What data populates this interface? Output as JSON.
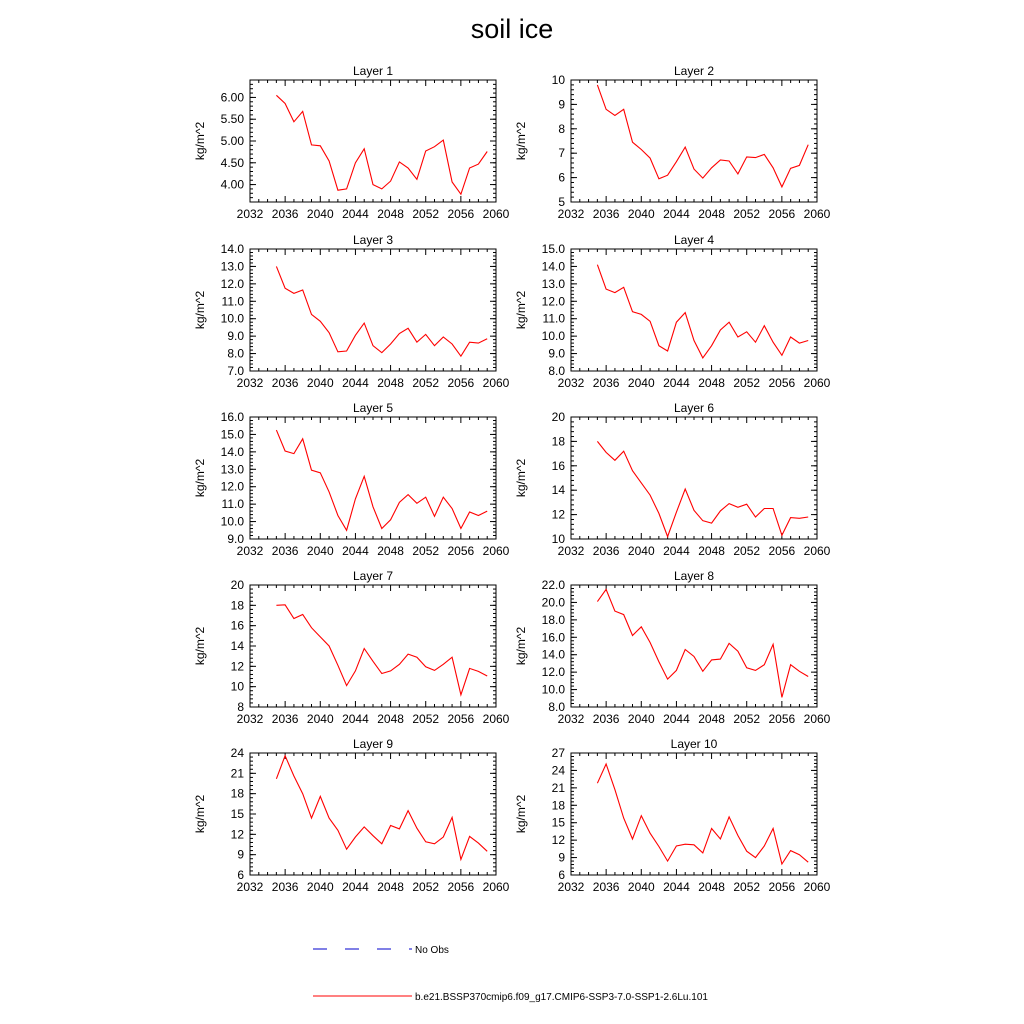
{
  "title": "soil ice",
  "colors": {
    "model": "#ff0000",
    "obs": "#0000cc",
    "axis": "#000000"
  },
  "legend": [
    {
      "label": "No Obs",
      "style": "dashed",
      "color": "#0000cc"
    },
    {
      "label": "b.e21.BSSP370cmip6.f09_g17.CMIP6-SSP3-7.0-SSP1-2.6Lu.101",
      "style": "solid",
      "color": "#ff0000"
    }
  ],
  "chart_data": [
    {
      "type": "line",
      "title": "Layer 1",
      "ylabel": "kg/m^2",
      "xlim": [
        2032,
        2060
      ],
      "xticks": [
        2032,
        2036,
        2040,
        2044,
        2048,
        2052,
        2056,
        2060
      ],
      "xtick_labels": [
        "2032",
        "2036",
        "2040",
        "2044",
        "2048",
        "2052",
        "2056",
        "2060"
      ],
      "ylim": [
        3.6,
        6.4
      ],
      "yticks": [
        4.0,
        4.5,
        5.0,
        5.5,
        6.0
      ],
      "ytick_labels": [
        "4.00",
        "4.50",
        "5.00",
        "5.50",
        "6.00"
      ],
      "series": [
        {
          "x": [
            2035,
            2036,
            2037,
            2038,
            2039,
            2040,
            2041,
            2042,
            2043,
            2044,
            2045,
            2046,
            2047,
            2048,
            2049,
            2050,
            2051,
            2052,
            2053,
            2054,
            2055,
            2056,
            2057,
            2058,
            2059
          ],
          "values": [
            6.05,
            5.86,
            5.44,
            5.68,
            4.91,
            4.89,
            4.54,
            3.87,
            3.9,
            4.5,
            4.82,
            4.0,
            3.9,
            4.08,
            4.52,
            4.38,
            4.12,
            4.77,
            4.87,
            5.02,
            4.06,
            3.78,
            4.38,
            4.47,
            4.76
          ]
        }
      ]
    },
    {
      "type": "line",
      "title": "Layer 2",
      "ylabel": "kg/m^2",
      "xlim": [
        2032,
        2060
      ],
      "xticks": [
        2032,
        2036,
        2040,
        2044,
        2048,
        2052,
        2056,
        2060
      ],
      "xtick_labels": [
        "2032",
        "2036",
        "2040",
        "2044",
        "2048",
        "2052",
        "2056",
        "2060"
      ],
      "ylim": [
        5,
        10
      ],
      "yticks": [
        5,
        6,
        7,
        8,
        9,
        10
      ],
      "ytick_labels": [
        "5",
        "6",
        "7",
        "8",
        "9",
        "10"
      ],
      "series": [
        {
          "x": [
            2035,
            2036,
            2037,
            2038,
            2039,
            2040,
            2041,
            2042,
            2043,
            2044,
            2045,
            2046,
            2047,
            2048,
            2049,
            2050,
            2051,
            2052,
            2053,
            2054,
            2055,
            2056,
            2057,
            2058,
            2059
          ],
          "values": [
            9.8,
            8.8,
            8.55,
            8.8,
            7.45,
            7.15,
            6.8,
            5.95,
            6.1,
            6.65,
            7.25,
            6.35,
            5.98,
            6.4,
            6.72,
            6.68,
            6.15,
            6.85,
            6.82,
            6.95,
            6.4,
            5.62,
            6.38,
            6.5,
            7.35
          ]
        }
      ]
    },
    {
      "type": "line",
      "title": "Layer 3",
      "ylabel": "kg/m^2",
      "xlim": [
        2032,
        2060
      ],
      "xticks": [
        2032,
        2036,
        2040,
        2044,
        2048,
        2052,
        2056,
        2060
      ],
      "xtick_labels": [
        "2032",
        "2036",
        "2040",
        "2044",
        "2048",
        "2052",
        "2056",
        "2060"
      ],
      "ylim": [
        7,
        14
      ],
      "yticks": [
        7,
        8,
        9,
        10,
        11,
        12,
        13,
        14
      ],
      "ytick_labels": [
        "7.0",
        "8.0",
        "9.0",
        "10.0",
        "11.0",
        "12.0",
        "13.0",
        "14.0"
      ],
      "series": [
        {
          "x": [
            2035,
            2036,
            2037,
            2038,
            2039,
            2040,
            2041,
            2042,
            2043,
            2044,
            2045,
            2046,
            2047,
            2048,
            2049,
            2050,
            2051,
            2052,
            2053,
            2054,
            2055,
            2056,
            2057,
            2058,
            2059
          ],
          "values": [
            13.0,
            11.75,
            11.45,
            11.65,
            10.25,
            9.85,
            9.2,
            8.1,
            8.15,
            9.05,
            9.75,
            8.45,
            8.05,
            8.55,
            9.15,
            9.45,
            8.65,
            9.1,
            8.45,
            8.95,
            8.55,
            7.85,
            8.65,
            8.6,
            8.85
          ]
        }
      ]
    },
    {
      "type": "line",
      "title": "Layer 4",
      "ylabel": "kg/m^2",
      "xlim": [
        2032,
        2060
      ],
      "xticks": [
        2032,
        2036,
        2040,
        2044,
        2048,
        2052,
        2056,
        2060
      ],
      "xtick_labels": [
        "2032",
        "2036",
        "2040",
        "2044",
        "2048",
        "2052",
        "2056",
        "2060"
      ],
      "ylim": [
        8,
        15
      ],
      "yticks": [
        8,
        9,
        10,
        11,
        12,
        13,
        14,
        15
      ],
      "ytick_labels": [
        "8.0",
        "9.0",
        "10.0",
        "11.0",
        "12.0",
        "13.0",
        "14.0",
        "15.0"
      ],
      "series": [
        {
          "x": [
            2035,
            2036,
            2037,
            2038,
            2039,
            2040,
            2041,
            2042,
            2043,
            2044,
            2045,
            2046,
            2047,
            2048,
            2049,
            2050,
            2051,
            2052,
            2053,
            2054,
            2055,
            2056,
            2057,
            2058,
            2059
          ],
          "values": [
            14.1,
            12.7,
            12.5,
            12.8,
            11.4,
            11.25,
            10.85,
            9.45,
            9.15,
            10.8,
            11.35,
            9.75,
            8.75,
            9.45,
            10.35,
            10.8,
            9.95,
            10.25,
            9.65,
            10.6,
            9.65,
            8.9,
            9.95,
            9.6,
            9.75
          ]
        }
      ]
    },
    {
      "type": "line",
      "title": "Layer 5",
      "ylabel": "kg/m^2",
      "xlim": [
        2032,
        2060
      ],
      "xticks": [
        2032,
        2036,
        2040,
        2044,
        2048,
        2052,
        2056,
        2060
      ],
      "xtick_labels": [
        "2032",
        "2036",
        "2040",
        "2044",
        "2048",
        "2052",
        "2056",
        "2060"
      ],
      "ylim": [
        9,
        16
      ],
      "yticks": [
        9,
        10,
        11,
        12,
        13,
        14,
        15,
        16
      ],
      "ytick_labels": [
        "9.0",
        "10.0",
        "11.0",
        "12.0",
        "13.0",
        "14.0",
        "15.0",
        "16.0"
      ],
      "series": [
        {
          "x": [
            2035,
            2036,
            2037,
            2038,
            2039,
            2040,
            2041,
            2042,
            2043,
            2044,
            2045,
            2046,
            2047,
            2048,
            2049,
            2050,
            2051,
            2052,
            2053,
            2054,
            2055,
            2056,
            2057,
            2058,
            2059
          ],
          "values": [
            15.25,
            14.05,
            13.9,
            14.75,
            12.95,
            12.8,
            11.7,
            10.35,
            9.5,
            11.3,
            12.6,
            10.85,
            9.6,
            10.1,
            11.1,
            11.55,
            11.05,
            11.4,
            10.3,
            11.4,
            10.75,
            9.6,
            10.55,
            10.35,
            10.6
          ]
        }
      ]
    },
    {
      "type": "line",
      "title": "Layer 6",
      "ylabel": "kg/m^2",
      "xlim": [
        2032,
        2060
      ],
      "xticks": [
        2032,
        2036,
        2040,
        2044,
        2048,
        2052,
        2056,
        2060
      ],
      "xtick_labels": [
        "2032",
        "2036",
        "2040",
        "2044",
        "2048",
        "2052",
        "2056",
        "2060"
      ],
      "ylim": [
        10,
        20
      ],
      "yticks": [
        10,
        12,
        14,
        16,
        18,
        20
      ],
      "ytick_labels": [
        "10",
        "12",
        "14",
        "16",
        "18",
        "20"
      ],
      "series": [
        {
          "x": [
            2035,
            2036,
            2037,
            2038,
            2039,
            2040,
            2041,
            2042,
            2043,
            2044,
            2045,
            2046,
            2047,
            2048,
            2049,
            2050,
            2051,
            2052,
            2053,
            2054,
            2055,
            2056,
            2057,
            2058,
            2059
          ],
          "values": [
            18.0,
            17.1,
            16.45,
            17.2,
            15.6,
            14.6,
            13.6,
            12.1,
            10.2,
            12.2,
            14.1,
            12.35,
            11.5,
            11.3,
            12.3,
            12.9,
            12.6,
            12.85,
            11.8,
            12.5,
            12.5,
            10.3,
            11.75,
            11.7,
            11.8
          ]
        }
      ]
    },
    {
      "type": "line",
      "title": "Layer 7",
      "ylabel": "kg/m^2",
      "xlim": [
        2032,
        2060
      ],
      "xticks": [
        2032,
        2036,
        2040,
        2044,
        2048,
        2052,
        2056,
        2060
      ],
      "xtick_labels": [
        "2032",
        "2036",
        "2040",
        "2044",
        "2048",
        "2052",
        "2056",
        "2060"
      ],
      "ylim": [
        8,
        20
      ],
      "yticks": [
        8,
        10,
        12,
        14,
        16,
        18,
        20
      ],
      "ytick_labels": [
        "8",
        "10",
        "12",
        "14",
        "16",
        "18",
        "20"
      ],
      "series": [
        {
          "x": [
            2035,
            2036,
            2037,
            2038,
            2039,
            2040,
            2041,
            2042,
            2043,
            2044,
            2045,
            2046,
            2047,
            2048,
            2049,
            2050,
            2051,
            2052,
            2053,
            2054,
            2055,
            2056,
            2057,
            2058,
            2059
          ],
          "values": [
            18.0,
            18.05,
            16.7,
            17.1,
            15.8,
            14.9,
            14.0,
            12.1,
            10.1,
            11.55,
            13.75,
            12.5,
            11.3,
            11.55,
            12.2,
            13.2,
            12.9,
            11.95,
            11.6,
            12.2,
            12.9,
            9.2,
            11.8,
            11.5,
            11.05
          ]
        }
      ]
    },
    {
      "type": "line",
      "title": "Layer 8",
      "ylabel": "kg/m^2",
      "xlim": [
        2032,
        2060
      ],
      "xticks": [
        2032,
        2036,
        2040,
        2044,
        2048,
        2052,
        2056,
        2060
      ],
      "xtick_labels": [
        "2032",
        "2036",
        "2040",
        "2044",
        "2048",
        "2052",
        "2056",
        "2060"
      ],
      "ylim": [
        8,
        22
      ],
      "yticks": [
        8,
        10,
        12,
        14,
        16,
        18,
        20,
        22
      ],
      "ytick_labels": [
        "8.0",
        "10.0",
        "12.0",
        "14.0",
        "16.0",
        "18.0",
        "20.0",
        "22.0"
      ],
      "series": [
        {
          "x": [
            2035,
            2036,
            2037,
            2038,
            2039,
            2040,
            2041,
            2042,
            2043,
            2044,
            2045,
            2046,
            2047,
            2048,
            2049,
            2050,
            2051,
            2052,
            2053,
            2054,
            2055,
            2056,
            2057,
            2058,
            2059
          ],
          "values": [
            20.1,
            21.5,
            19.0,
            18.6,
            16.2,
            17.2,
            15.4,
            13.2,
            11.2,
            12.2,
            14.6,
            13.8,
            12.1,
            13.4,
            13.5,
            15.3,
            14.4,
            12.5,
            12.2,
            12.85,
            15.2,
            9.1,
            12.85,
            12.1,
            11.5
          ]
        }
      ]
    },
    {
      "type": "line",
      "title": "Layer 9",
      "ylabel": "kg/m^2",
      "xlim": [
        2032,
        2060
      ],
      "xticks": [
        2032,
        2036,
        2040,
        2044,
        2048,
        2052,
        2056,
        2060
      ],
      "xtick_labels": [
        "2032",
        "2036",
        "2040",
        "2044",
        "2048",
        "2052",
        "2056",
        "2060"
      ],
      "ylim": [
        6,
        24
      ],
      "yticks": [
        6,
        9,
        12,
        15,
        18,
        21,
        24
      ],
      "ytick_labels": [
        "6",
        "9",
        "12",
        "15",
        "18",
        "21",
        "24"
      ],
      "series": [
        {
          "x": [
            2035,
            2036,
            2037,
            2038,
            2039,
            2040,
            2041,
            2042,
            2043,
            2044,
            2045,
            2046,
            2047,
            2048,
            2049,
            2050,
            2051,
            2052,
            2053,
            2054,
            2055,
            2056,
            2057,
            2058,
            2059
          ],
          "values": [
            20.2,
            23.6,
            20.6,
            18.0,
            14.4,
            17.6,
            14.4,
            12.6,
            9.8,
            11.6,
            13.1,
            11.8,
            10.6,
            13.3,
            12.8,
            15.5,
            12.9,
            10.9,
            10.6,
            11.6,
            14.5,
            8.3,
            11.7,
            10.7,
            9.5
          ]
        }
      ]
    },
    {
      "type": "line",
      "title": "Layer 10",
      "ylabel": "kg/m^2",
      "xlim": [
        2032,
        2060
      ],
      "xticks": [
        2032,
        2036,
        2040,
        2044,
        2048,
        2052,
        2056,
        2060
      ],
      "xtick_labels": [
        "2032",
        "2036",
        "2040",
        "2044",
        "2048",
        "2052",
        "2056",
        "2060"
      ],
      "ylim": [
        6,
        27
      ],
      "yticks": [
        6,
        9,
        12,
        15,
        18,
        21,
        24,
        27
      ],
      "ytick_labels": [
        "6",
        "9",
        "12",
        "15",
        "18",
        "21",
        "24",
        "27"
      ],
      "series": [
        {
          "x": [
            2035,
            2036,
            2037,
            2038,
            2039,
            2040,
            2041,
            2042,
            2043,
            2044,
            2045,
            2046,
            2047,
            2048,
            2049,
            2050,
            2051,
            2052,
            2053,
            2054,
            2055,
            2056,
            2057,
            2058,
            2059
          ],
          "values": [
            21.8,
            25.1,
            20.7,
            15.8,
            12.2,
            16.2,
            13.2,
            10.9,
            8.4,
            11.0,
            11.3,
            11.2,
            9.8,
            14.0,
            12.2,
            16.0,
            12.8,
            10.1,
            9.0,
            11.0,
            14.0,
            7.9,
            10.2,
            9.5,
            8.2
          ]
        }
      ]
    }
  ]
}
